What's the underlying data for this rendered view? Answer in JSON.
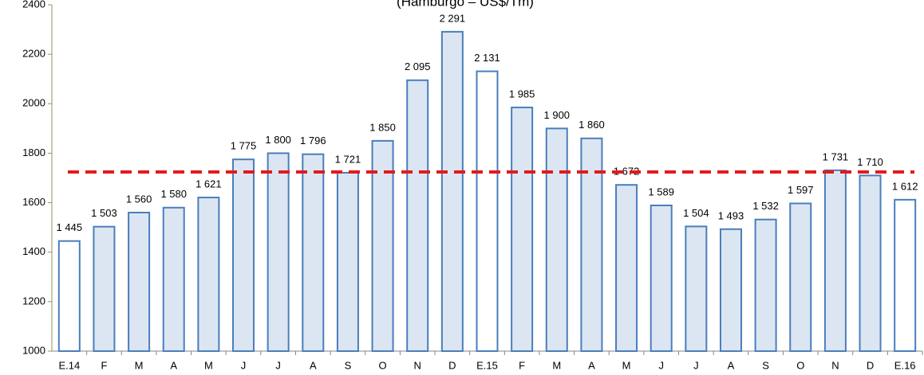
{
  "chart_data": {
    "type": "bar",
    "subtitle": "(Hamburgo – US$/Tm)",
    "categories": [
      "E.14",
      "F",
      "M",
      "A",
      "M",
      "J",
      "J",
      "A",
      "S",
      "O",
      "N",
      "D",
      "E.15",
      "F",
      "M",
      "A",
      "M",
      "J",
      "J",
      "A",
      "S",
      "O",
      "N",
      "D",
      "E.16"
    ],
    "values": [
      1445,
      1503,
      1560,
      1580,
      1621,
      1775,
      1800,
      1796,
      1721,
      1850,
      2095,
      2291,
      2131,
      1985,
      1900,
      1860,
      1672,
      1589,
      1504,
      1493,
      1532,
      1597,
      1731,
      1710,
      1612
    ],
    "value_labels": [
      "1 445",
      "1 503",
      "1 560",
      "1 580",
      "1 621",
      "1 775",
      "1 800",
      "1 796",
      "1 721",
      "1 850",
      "2 095",
      "2 291",
      "2 131",
      "1 985",
      "1 900",
      "1 860",
      "1 672",
      "1 589",
      "1 504",
      "1 493",
      "1 532",
      "1 597",
      "1 731",
      "1 710",
      "1 612"
    ],
    "colors": [
      "#ffffff",
      "#dce6f2",
      "#dce6f2",
      "#dce6f2",
      "#dce6f2",
      "#dce6f2",
      "#dce6f2",
      "#dce6f2",
      "#dce6f2",
      "#dce6f2",
      "#dce6f2",
      "#dce6f2",
      "#ffffff",
      "#dce6f2",
      "#dce6f2",
      "#dce6f2",
      "#dce6f2",
      "#dce6f2",
      "#dce6f2",
      "#dce6f2",
      "#dce6f2",
      "#dce6f2",
      "#dce6f2",
      "#dce6f2",
      "#ffffff"
    ],
    "border_color": "#4a7ebb",
    "reference_line": 1724,
    "reference_color": "#e31a1c",
    "ylim": [
      1000,
      2400
    ],
    "yticks": [
      1000,
      1200,
      1400,
      1600,
      1800,
      2000,
      2200,
      2400
    ],
    "grid": false
  }
}
